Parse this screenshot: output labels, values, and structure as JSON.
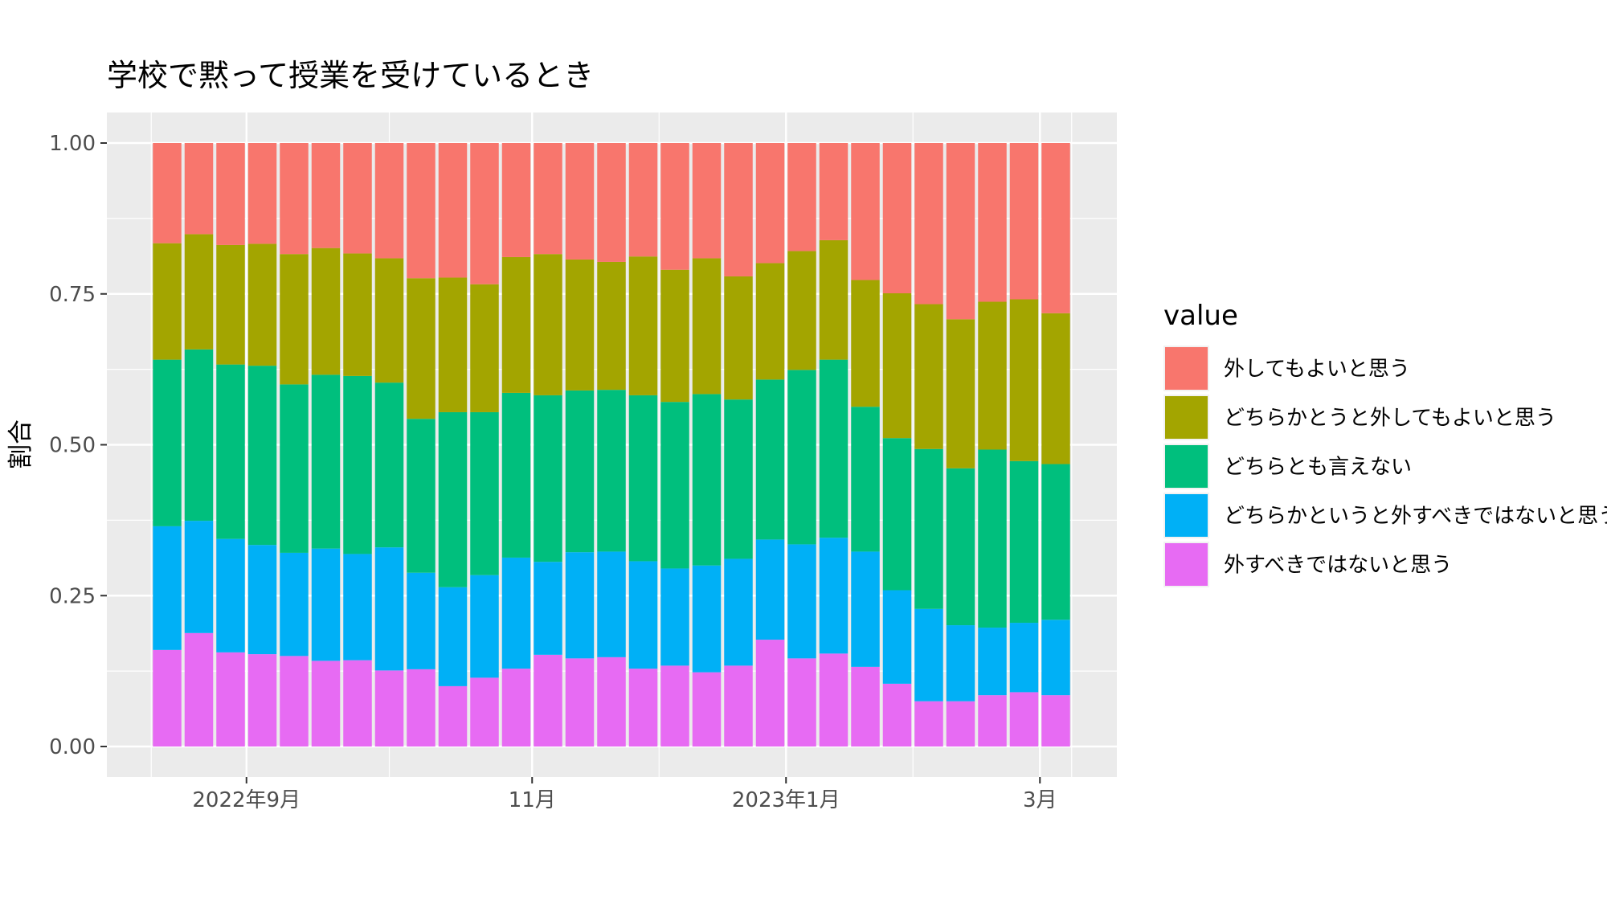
{
  "chart_data": {
    "type": "bar",
    "stacked": true,
    "title": "学校で黙って授業を受けているとき",
    "xlabel": "",
    "ylabel": "割合",
    "ylim": [
      0,
      1
    ],
    "y_ticks": [
      "0.00",
      "0.25",
      "0.50",
      "0.75",
      "1.00"
    ],
    "x_ticks": [
      {
        "label": "2022年9月",
        "at_bar": 2.5
      },
      {
        "label": "11月",
        "at_bar": 11.5
      },
      {
        "label": "2023年1月",
        "at_bar": 19.5
      },
      {
        "label": "3月",
        "at_bar": 27.5
      }
    ],
    "legend": {
      "title": "value",
      "position": "right"
    },
    "background": "#ebebeb",
    "grid": true,
    "n_bars": 29,
    "series": [
      {
        "name": "外すべきではないと思う",
        "color": "#e76bf3",
        "values": [
          0.16,
          0.188,
          0.156,
          0.153,
          0.15,
          0.142,
          0.143,
          0.126,
          0.128,
          0.1,
          0.114,
          0.129,
          0.152,
          0.146,
          0.148,
          0.129,
          0.134,
          0.123,
          0.134,
          0.177,
          0.146,
          0.154,
          0.132,
          0.104,
          0.075,
          0.075,
          0.085,
          0.09,
          0.085
        ]
      },
      {
        "name": "どちらかというと外すべきではないと思う",
        "color": "#00b0f6",
        "values": [
          0.205,
          0.186,
          0.188,
          0.181,
          0.171,
          0.186,
          0.176,
          0.204,
          0.16,
          0.164,
          0.17,
          0.184,
          0.154,
          0.176,
          0.175,
          0.178,
          0.161,
          0.177,
          0.177,
          0.166,
          0.189,
          0.192,
          0.191,
          0.155,
          0.153,
          0.126,
          0.112,
          0.115,
          0.125
        ]
      },
      {
        "name": "どちらとも言えない",
        "color": "#00bf7d",
        "values": [
          0.276,
          0.284,
          0.289,
          0.297,
          0.279,
          0.288,
          0.295,
          0.273,
          0.255,
          0.29,
          0.27,
          0.273,
          0.276,
          0.268,
          0.268,
          0.275,
          0.276,
          0.284,
          0.264,
          0.265,
          0.289,
          0.295,
          0.24,
          0.252,
          0.265,
          0.26,
          0.295,
          0.268,
          0.258
        ]
      },
      {
        "name": "どちらかとうと外してもよいと思う",
        "color": "#a3a500",
        "values": [
          0.193,
          0.191,
          0.198,
          0.202,
          0.216,
          0.21,
          0.203,
          0.206,
          0.233,
          0.223,
          0.212,
          0.225,
          0.234,
          0.217,
          0.212,
          0.23,
          0.219,
          0.225,
          0.204,
          0.193,
          0.197,
          0.198,
          0.21,
          0.24,
          0.24,
          0.247,
          0.245,
          0.268,
          0.25
        ]
      },
      {
        "name": "外してもよいと思う",
        "color": "#f8766d",
        "values": [
          0.166,
          0.151,
          0.169,
          0.167,
          0.184,
          0.174,
          0.183,
          0.191,
          0.224,
          0.223,
          0.234,
          0.189,
          0.184,
          0.193,
          0.197,
          0.188,
          0.21,
          0.191,
          0.221,
          0.199,
          0.179,
          0.161,
          0.227,
          0.249,
          0.267,
          0.292,
          0.263,
          0.259,
          0.282
        ]
      }
    ]
  }
}
